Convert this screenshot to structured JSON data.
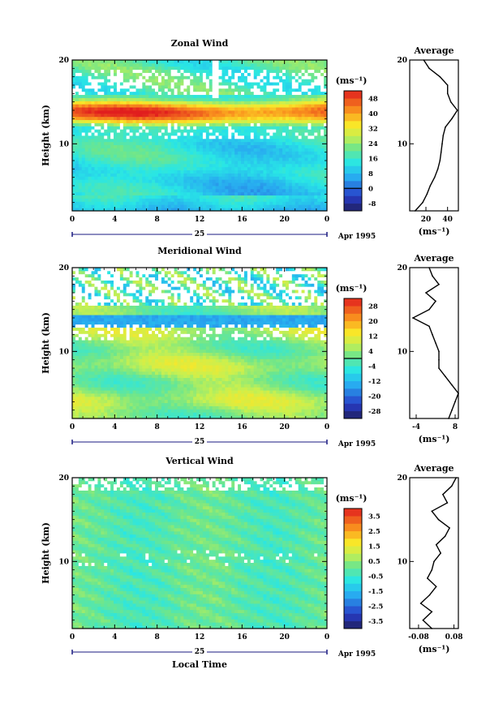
{
  "chart_data": [
    {
      "type": "heatmap",
      "title": "Zonal Wind",
      "ylabel": "Height (km)",
      "xlabel": "",
      "x_ticks": [
        "0",
        "4",
        "8",
        "12",
        "16",
        "20",
        "0"
      ],
      "y_ticks": [
        "20",
        "10"
      ],
      "xlim": [
        0,
        24
      ],
      "ylim": [
        2,
        20
      ],
      "day_label": "25",
      "date_label": "Apr 1995",
      "colorbar": {
        "units": "(ms⁻¹)",
        "levels": [
          "-8",
          "0",
          "8",
          "16",
          "24",
          "32",
          "40",
          "48"
        ],
        "min": -12,
        "max": 52,
        "zero_line": 0
      },
      "average": {
        "title": "Average",
        "x_ticks": [
          "20",
          "40"
        ],
        "xlim": [
          5,
          50
        ],
        "y_ticks": [
          "20",
          "10"
        ],
        "units": "(ms⁻¹)",
        "height": [
          2,
          3,
          4,
          5,
          6,
          7,
          8,
          9,
          10,
          11,
          12,
          13,
          14,
          15,
          16,
          17,
          18,
          19,
          20
        ],
        "value": [
          10,
          17,
          21,
          24,
          28,
          31,
          33,
          34,
          35,
          36,
          38,
          44,
          49,
          43,
          40,
          40,
          33,
          23,
          18
        ]
      }
    },
    {
      "type": "heatmap",
      "title": "Meridional Wind",
      "ylabel": "Height (km)",
      "xlabel": "",
      "x_ticks": [
        "0",
        "4",
        "8",
        "12",
        "16",
        "20",
        "0"
      ],
      "y_ticks": [
        "20",
        "10"
      ],
      "xlim": [
        0,
        24
      ],
      "ylim": [
        2,
        20
      ],
      "day_label": "25",
      "date_label": "Apr 1995",
      "colorbar": {
        "units": "(ms⁻¹)",
        "levels": [
          "-28",
          "-20",
          "-12",
          "-4",
          "4",
          "12",
          "20",
          "28"
        ],
        "min": -32,
        "max": 32,
        "zero_line": 0
      },
      "average": {
        "title": "Average",
        "x_ticks": [
          "-4",
          "8"
        ],
        "xlim": [
          -6,
          9
        ],
        "y_ticks": [
          "20",
          "10"
        ],
        "units": "(ms⁻¹)",
        "height": [
          2,
          3,
          4,
          5,
          6,
          7,
          8,
          9,
          10,
          11,
          12,
          13,
          14,
          15,
          16,
          17,
          18,
          19,
          20
        ],
        "value": [
          6,
          7,
          8,
          9,
          7,
          5,
          3,
          3,
          3,
          2,
          1,
          0,
          -5,
          0,
          2,
          -1,
          3,
          1,
          0
        ]
      }
    },
    {
      "type": "heatmap",
      "title": "Vertical Wind",
      "ylabel": "Height (km)",
      "xlabel": "Local Time",
      "x_ticks": [
        "0",
        "4",
        "8",
        "12",
        "16",
        "20",
        "0"
      ],
      "y_ticks": [
        "20",
        "10"
      ],
      "xlim": [
        0,
        24
      ],
      "ylim": [
        2,
        20
      ],
      "day_label": "25",
      "date_label": "Apr 1995",
      "colorbar": {
        "units": "(ms⁻¹)",
        "levels": [
          "-3.5",
          "-2.5",
          "-1.5",
          "-0.5",
          "0.5",
          "1.5",
          "2.5",
          "3.5"
        ],
        "min": -4,
        "max": 4,
        "zero_line": null
      },
      "average": {
        "title": "Average",
        "x_ticks": [
          "-0.08",
          "0.08"
        ],
        "xlim": [
          -0.12,
          0.1
        ],
        "y_ticks": [
          "20",
          "10"
        ],
        "units": "(ms⁻¹)",
        "height": [
          2,
          3,
          4,
          5,
          6,
          7,
          8,
          9,
          10,
          11,
          12,
          13,
          14,
          15,
          16,
          17,
          18,
          19,
          20
        ],
        "value": [
          -0.02,
          -0.06,
          -0.02,
          -0.07,
          -0.03,
          0.0,
          -0.04,
          -0.02,
          -0.01,
          0.02,
          0.0,
          0.04,
          0.06,
          0.01,
          -0.02,
          0.05,
          0.03,
          0.07,
          0.09
        ]
      }
    }
  ]
}
